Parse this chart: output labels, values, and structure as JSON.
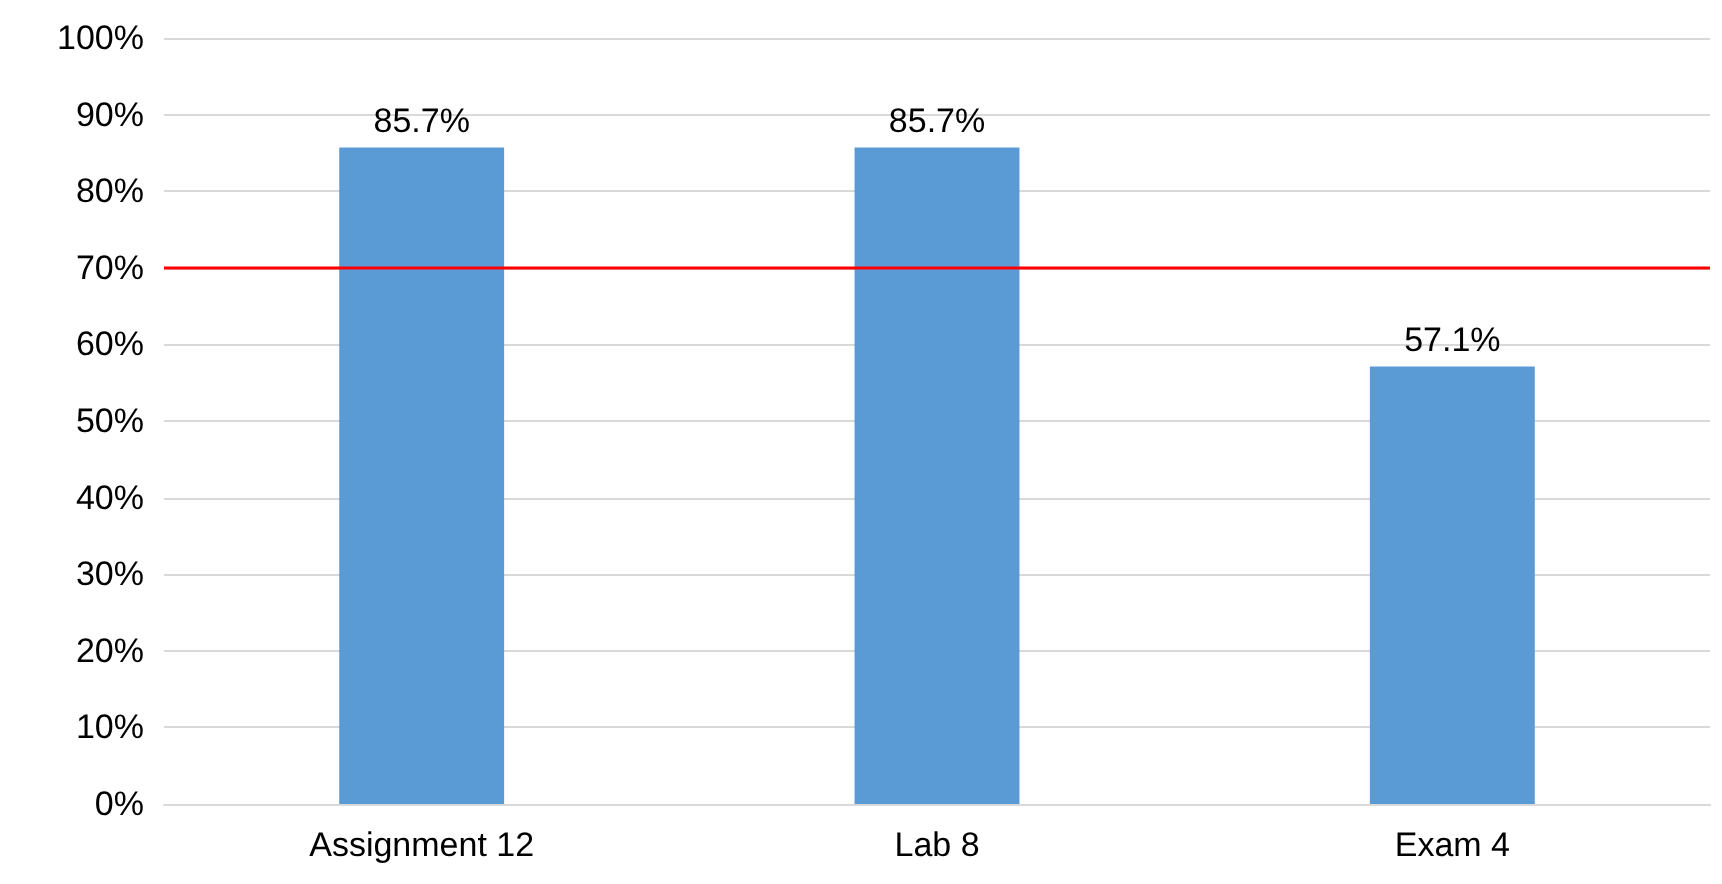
{
  "chart_data": {
    "type": "bar",
    "categories": [
      "Assignment 12",
      "Lab 8",
      "Exam 4"
    ],
    "values": [
      85.7,
      85.7,
      57.1
    ],
    "value_labels": [
      "85.7%",
      "85.7%",
      "57.1%"
    ],
    "color": "#5b9bd5",
    "ylim": [
      0,
      100
    ],
    "yticks": [
      {
        "value": 0,
        "label": "0%"
      },
      {
        "value": 10,
        "label": "10%"
      },
      {
        "value": 20,
        "label": "20%"
      },
      {
        "value": 30,
        "label": "30%"
      },
      {
        "value": 40,
        "label": "40%"
      },
      {
        "value": 50,
        "label": "50%"
      },
      {
        "value": 60,
        "label": "60%"
      },
      {
        "value": 70,
        "label": "70%"
      },
      {
        "value": 80,
        "label": "80%"
      },
      {
        "value": 90,
        "label": "90%"
      },
      {
        "value": 100,
        "label": "100%"
      }
    ],
    "ref_lines": [
      {
        "axis": "y",
        "value": 70,
        "label": null,
        "color": "#ff0000"
      }
    ],
    "grid": "y"
  }
}
